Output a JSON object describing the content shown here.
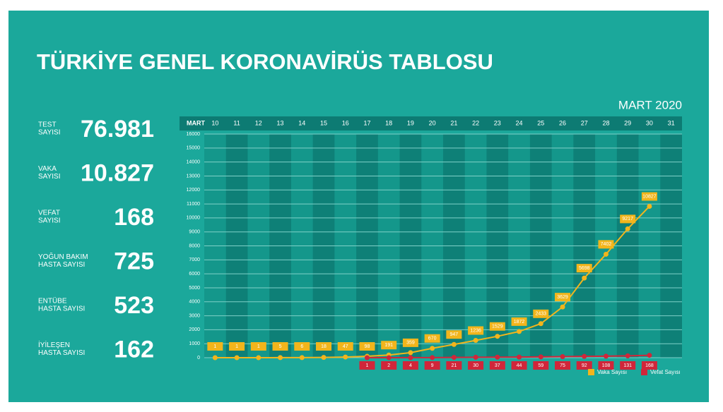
{
  "title": "TÜRKİYE GENEL KORONAVİRÜS TABLOSU",
  "stats": [
    {
      "label": [
        "TEST",
        "SAYISI"
      ],
      "value": "76.981"
    },
    {
      "label": [
        "VAKA",
        "SAYISI"
      ],
      "value": "10.827"
    },
    {
      "label": [
        "VEFAT",
        "SAYISI"
      ],
      "value": "168"
    },
    {
      "label": [
        "YOĞUN BAKIM",
        "HASTA SAYISI"
      ],
      "value": "725"
    },
    {
      "label": [
        "ENTÜBE",
        "HASTA SAYISI"
      ],
      "value": "523"
    },
    {
      "label": [
        "İYİLEŞEN",
        "HASTA SAYISI"
      ],
      "value": "162"
    }
  ],
  "chart_data": {
    "type": "line",
    "subtitle": "MART 2020",
    "header_label": "MART",
    "categories": [
      "10",
      "11",
      "12",
      "13",
      "14",
      "15",
      "16",
      "17",
      "18",
      "19",
      "20",
      "21",
      "22",
      "23",
      "24",
      "25",
      "26",
      "27",
      "28",
      "29",
      "30",
      "31"
    ],
    "series": [
      {
        "name": "Vaka Sayısı",
        "color": "#f2b51c",
        "values": [
          1,
          1,
          1,
          5,
          6,
          18,
          47,
          98,
          191,
          359,
          670,
          947,
          1236,
          1529,
          1872,
          2433,
          3629,
          5698,
          7402,
          9217,
          10827,
          null
        ]
      },
      {
        "name": "Vefat Sayısı",
        "color": "#d0263a",
        "values": [
          null,
          null,
          null,
          null,
          null,
          null,
          null,
          1,
          2,
          4,
          9,
          21,
          30,
          37,
          44,
          59,
          75,
          92,
          108,
          131,
          168,
          null
        ]
      }
    ],
    "ylim": [
      0,
      16000
    ],
    "yticks": [
      0,
      1000,
      2000,
      3000,
      4000,
      5000,
      6000,
      7000,
      8000,
      9000,
      10000,
      11000,
      12000,
      13000,
      14000,
      15000,
      16000
    ],
    "grid": true
  }
}
